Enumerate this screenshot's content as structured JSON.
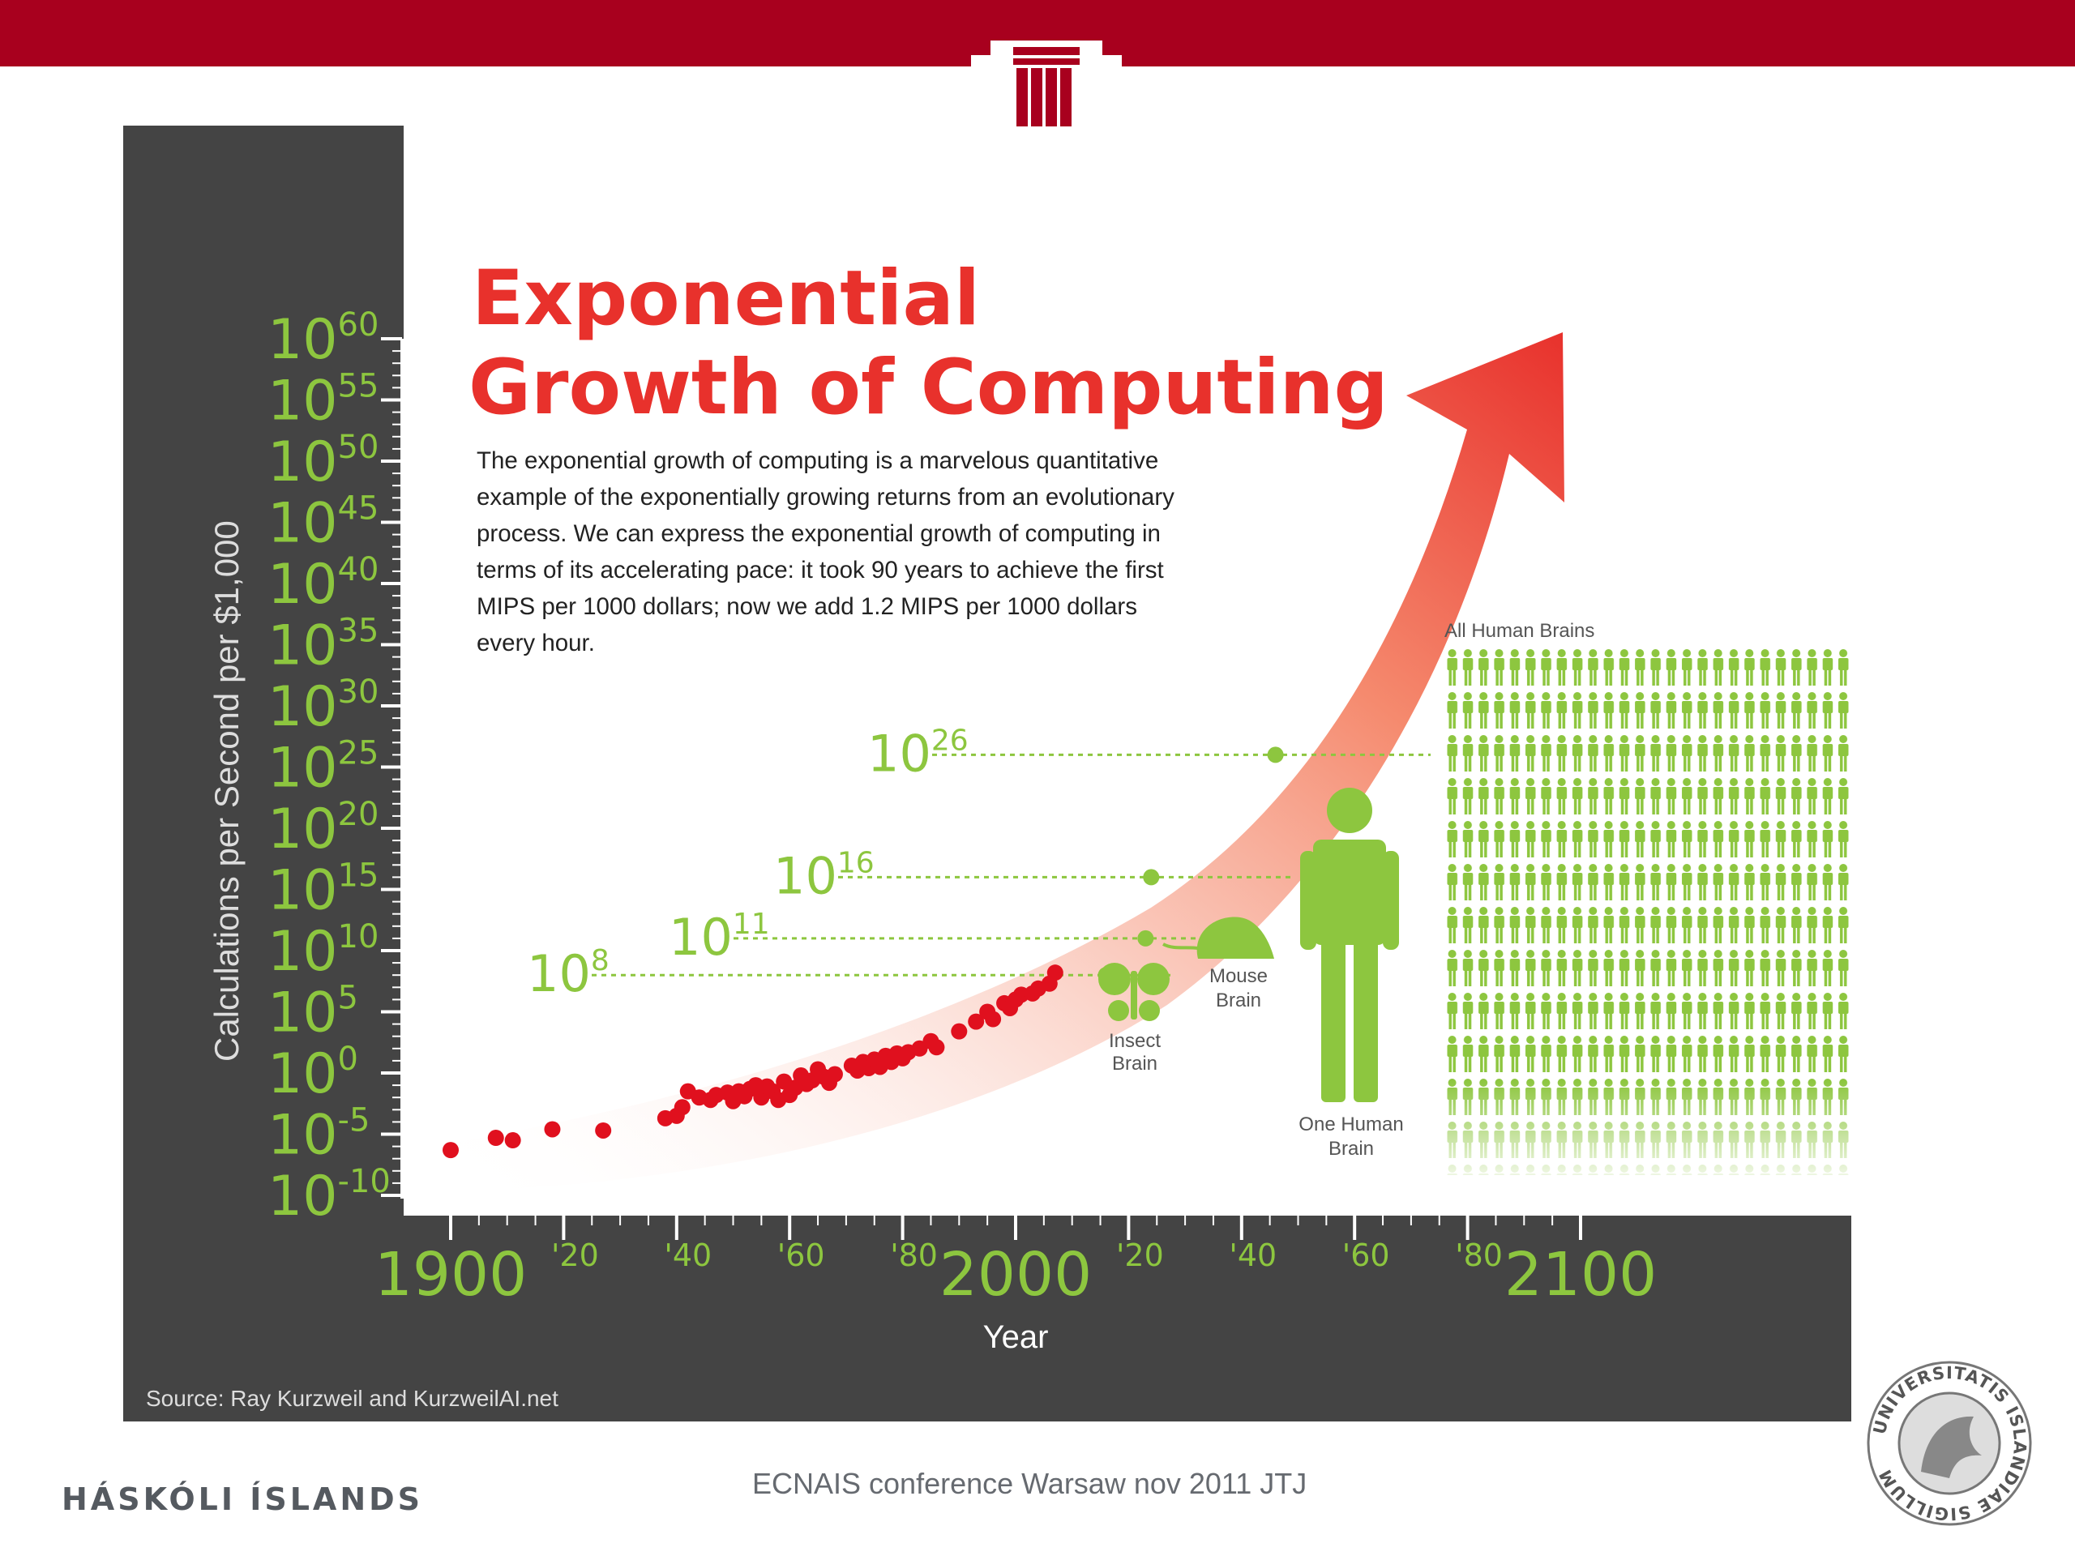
{
  "slide": {
    "university_name": "HÁSKÓLI ÍSLANDS",
    "footer_text": "ECNAIS conference Warsaw nov 2011 JTJ",
    "seal_text": "UNIVERSITATIS ISLANDIAE SIGILLUM",
    "colors": {
      "top_bar": "#a8001e",
      "panel": "#444444",
      "accent_green": "#8dc63f",
      "dot_red": "#e0101e",
      "title_red": "#e8312c"
    }
  },
  "chart_data": {
    "type": "scatter",
    "title_line1": "Exponential",
    "title_line2": "Growth of Computing",
    "description_lines": [
      "The exponential growth of computing is a marvelous quantitative",
      "example of the exponentially growing returns from an evolutionary",
      "process. We can express the exponential growth of computing in",
      "terms of its accelerating pace: it took 90 years to achieve the first",
      "MIPS per 1000 dollars; now we add 1.2 MIPS per 1000 dollars",
      "every hour."
    ],
    "ylabel": "Calculations per Second per $1,000",
    "xlabel": "Year",
    "source": "Source: Ray Kurzweil and KurzweilAI.net",
    "scale": "log10",
    "yticks": [
      {
        "base": "10",
        "exp": "60",
        "value": 60
      },
      {
        "base": "10",
        "exp": "55",
        "value": 55
      },
      {
        "base": "10",
        "exp": "50",
        "value": 50
      },
      {
        "base": "10",
        "exp": "45",
        "value": 45
      },
      {
        "base": "10",
        "exp": "40",
        "value": 40
      },
      {
        "base": "10",
        "exp": "35",
        "value": 35
      },
      {
        "base": "10",
        "exp": "30",
        "value": 30
      },
      {
        "base": "10",
        "exp": "25",
        "value": 25
      },
      {
        "base": "10",
        "exp": "20",
        "value": 20
      },
      {
        "base": "10",
        "exp": "15",
        "value": 15
      },
      {
        "base": "10",
        "exp": "10",
        "value": 10
      },
      {
        "base": "10",
        "exp": "5",
        "value": 5
      },
      {
        "base": "10",
        "exp": "0",
        "value": 0
      },
      {
        "base": "10",
        "exp": "-5",
        "value": -5
      },
      {
        "base": "10",
        "exp": "-10",
        "value": -10
      }
    ],
    "xticks": [
      {
        "label": "1900",
        "year": 1900,
        "major": true
      },
      {
        "label": "'20",
        "year": 1920,
        "major": false
      },
      {
        "label": "'40",
        "year": 1940,
        "major": false
      },
      {
        "label": "'60",
        "year": 1960,
        "major": false
      },
      {
        "label": "'80",
        "year": 1980,
        "major": false
      },
      {
        "label": "2000",
        "year": 2000,
        "major": true
      },
      {
        "label": "'20",
        "year": 2020,
        "major": false
      },
      {
        "label": "'40",
        "year": 2040,
        "major": false
      },
      {
        "label": "'60",
        "year": 2060,
        "major": false
      },
      {
        "label": "'80",
        "year": 2080,
        "major": false
      },
      {
        "label": "2100",
        "year": 2100,
        "major": true
      }
    ],
    "xlim": [
      1900,
      2100
    ],
    "ylim": [
      -10,
      60
    ],
    "points": [
      {
        "x": 1900,
        "y": -6.3
      },
      {
        "x": 1908,
        "y": -5.3
      },
      {
        "x": 1911,
        "y": -5.5
      },
      {
        "x": 1918,
        "y": -4.6
      },
      {
        "x": 1927,
        "y": -4.7
      },
      {
        "x": 1938,
        "y": -3.7
      },
      {
        "x": 1940,
        "y": -3.5
      },
      {
        "x": 1941,
        "y": -2.8
      },
      {
        "x": 1942,
        "y": -1.5
      },
      {
        "x": 1944,
        "y": -2.0
      },
      {
        "x": 1946,
        "y": -2.2
      },
      {
        "x": 1947,
        "y": -1.8
      },
      {
        "x": 1949,
        "y": -1.6
      },
      {
        "x": 1950,
        "y": -2.3
      },
      {
        "x": 1951,
        "y": -1.5
      },
      {
        "x": 1952,
        "y": -1.9
      },
      {
        "x": 1953,
        "y": -1.3
      },
      {
        "x": 1954,
        "y": -1.0
      },
      {
        "x": 1955,
        "y": -2.0
      },
      {
        "x": 1956,
        "y": -1.1
      },
      {
        "x": 1957,
        "y": -1.5
      },
      {
        "x": 1958,
        "y": -2.2
      },
      {
        "x": 1959,
        "y": -0.7
      },
      {
        "x": 1960,
        "y": -1.8
      },
      {
        "x": 1961,
        "y": -1.2
      },
      {
        "x": 1962,
        "y": -0.2
      },
      {
        "x": 1963,
        "y": -0.9
      },
      {
        "x": 1964,
        "y": -0.6
      },
      {
        "x": 1965,
        "y": 0.3
      },
      {
        "x": 1966,
        "y": -0.3
      },
      {
        "x": 1967,
        "y": -0.8
      },
      {
        "x": 1968,
        "y": -0.1
      },
      {
        "x": 1971,
        "y": 0.6
      },
      {
        "x": 1972,
        "y": 0.2
      },
      {
        "x": 1973,
        "y": 0.9
      },
      {
        "x": 1974,
        "y": 0.4
      },
      {
        "x": 1975,
        "y": 1.1
      },
      {
        "x": 1976,
        "y": 0.5
      },
      {
        "x": 1977,
        "y": 1.4
      },
      {
        "x": 1978,
        "y": 0.9
      },
      {
        "x": 1979,
        "y": 1.6
      },
      {
        "x": 1980,
        "y": 1.2
      },
      {
        "x": 1981,
        "y": 1.7
      },
      {
        "x": 1983,
        "y": 2.0
      },
      {
        "x": 1985,
        "y": 2.6
      },
      {
        "x": 1986,
        "y": 2.1
      },
      {
        "x": 1990,
        "y": 3.4
      },
      {
        "x": 1993,
        "y": 4.2
      },
      {
        "x": 1995,
        "y": 5.0
      },
      {
        "x": 1996,
        "y": 4.4
      },
      {
        "x": 1998,
        "y": 5.7
      },
      {
        "x": 1999,
        "y": 5.3
      },
      {
        "x": 2000,
        "y": 6.0
      },
      {
        "x": 2001,
        "y": 6.4
      },
      {
        "x": 2003,
        "y": 6.5
      },
      {
        "x": 2004,
        "y": 6.9
      },
      {
        "x": 2006,
        "y": 7.3
      },
      {
        "x": 2007,
        "y": 8.2
      }
    ],
    "thresholds": [
      {
        "name": "Insect Brain",
        "base": "10",
        "exp": "8",
        "value": 8,
        "year": 2016
      },
      {
        "name": "Mouse Brain",
        "base": "10",
        "exp": "11",
        "value": 11,
        "year": 2023
      },
      {
        "name": "One Human Brain",
        "base": "10",
        "exp": "16",
        "value": 16,
        "year": 2024
      },
      {
        "name": "All Human Brains",
        "base": "10",
        "exp": "26",
        "value": 26,
        "year": 2046
      }
    ],
    "labels": {
      "insect": [
        "Insect",
        "Brain"
      ],
      "mouse": [
        "Mouse",
        "Brain"
      ],
      "human": [
        "One Human",
        "Brain"
      ],
      "all_humans": "All Human Brains"
    },
    "grid": false
  }
}
